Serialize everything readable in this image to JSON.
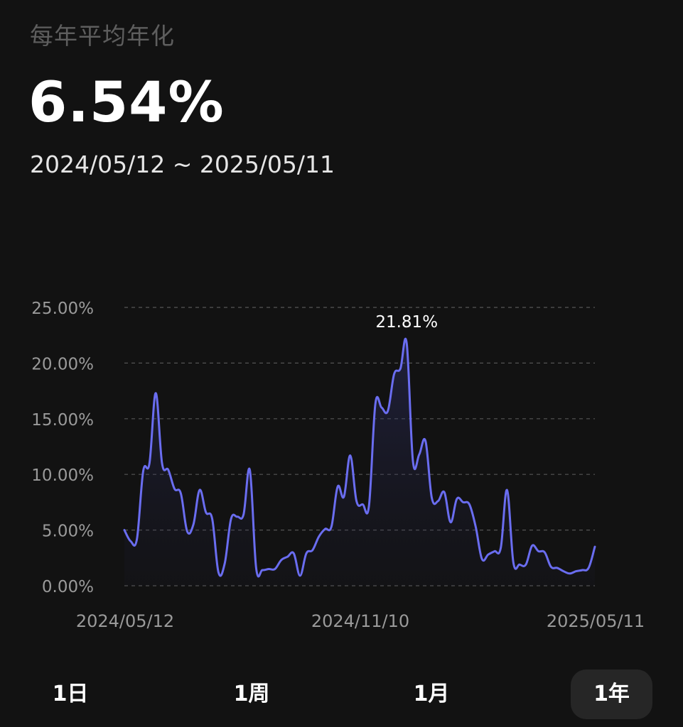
{
  "header": {
    "title": "每年平均年化",
    "value": "6.54%",
    "date_range": "2024/05/12 ~ 2025/05/11"
  },
  "tabs": [
    {
      "label": "1日",
      "active": false
    },
    {
      "label": "1周",
      "active": false
    },
    {
      "label": "1月",
      "active": false
    },
    {
      "label": "1年",
      "active": true
    }
  ],
  "colors": {
    "line": "#6a6df0",
    "grid": "#555555",
    "axis_text": "#9a9a9a",
    "background": "#121212"
  },
  "chart_data": {
    "type": "area",
    "xlabel": "",
    "ylabel": "",
    "ylim": [
      0,
      25
    ],
    "y_ticks": [
      "25.00%",
      "20.00%",
      "15.00%",
      "10.00%",
      "5.00%",
      "0.00%"
    ],
    "y_tick_values": [
      25,
      20,
      15,
      10,
      5,
      0
    ],
    "x_tick_labels": [
      "2024/05/12",
      "2024/11/10",
      "2025/05/11"
    ],
    "peak_label": "21.81%",
    "peak_value": 21.81,
    "grid": true,
    "legend": "none",
    "series": [
      {
        "values": [
          5.0,
          4.0,
          4.2,
          10.3,
          11.0,
          17.3,
          11.0,
          10.4,
          8.7,
          8.3,
          4.9,
          5.5,
          8.6,
          6.6,
          6.0,
          1.2,
          2.0,
          6.0,
          6.2,
          6.4,
          10.4,
          1.6,
          1.4,
          1.5,
          1.5,
          2.3,
          2.6,
          2.9,
          0.9,
          2.9,
          3.2,
          4.4,
          5.1,
          5.3,
          8.9,
          8.0,
          11.7,
          7.6,
          7.3,
          7.2,
          16.3,
          16.0,
          15.7,
          19.0,
          19.5,
          21.8,
          11.2,
          11.8,
          13.0,
          7.9,
          7.6,
          8.4,
          5.7,
          7.8,
          7.5,
          7.3,
          5.3,
          2.4,
          2.8,
          3.1,
          3.4,
          8.6,
          2.1,
          1.9,
          1.9,
          3.6,
          3.1,
          3.0,
          1.7,
          1.6,
          1.3,
          1.1,
          1.3,
          1.4,
          1.6,
          3.5
        ]
      }
    ]
  }
}
